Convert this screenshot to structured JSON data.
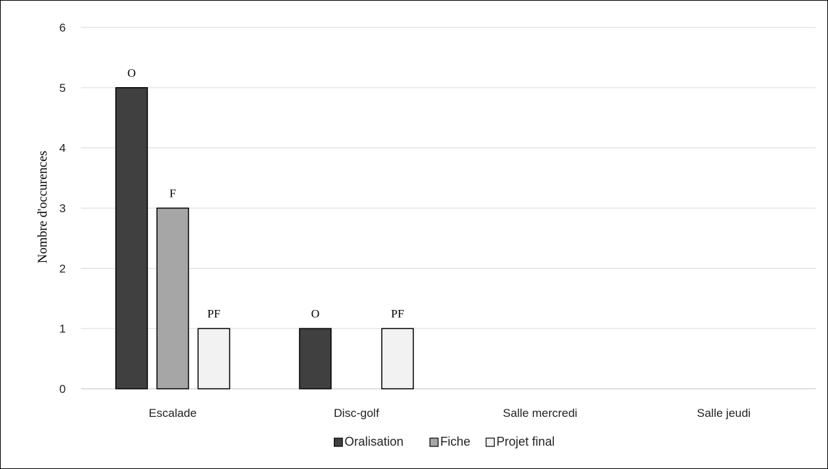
{
  "chart_data": {
    "type": "bar",
    "categories": [
      "Escalade",
      "Disc-golf",
      "Salle mercredi",
      "Salle jeudi"
    ],
    "series": [
      {
        "name": "Oralisation",
        "values": [
          5,
          1,
          0,
          0
        ],
        "labels": [
          "O",
          "O",
          "",
          ""
        ],
        "color": "#404040"
      },
      {
        "name": "Fiche",
        "values": [
          3,
          0,
          0,
          0
        ],
        "labels": [
          "F",
          "",
          "",
          ""
        ],
        "color": "#a6a6a6"
      },
      {
        "name": "Projet final",
        "values": [
          1,
          1,
          0,
          0
        ],
        "labels": [
          "PF",
          "PF",
          "",
          ""
        ],
        "color": "#f2f2f2"
      }
    ],
    "ylabel": "Nombre d'occurences",
    "xlabel": "",
    "ylim": [
      0,
      6
    ],
    "yticks": [
      "0",
      "1",
      "2",
      "3",
      "4",
      "5",
      "6"
    ],
    "grid": true,
    "legend": "bottom"
  }
}
